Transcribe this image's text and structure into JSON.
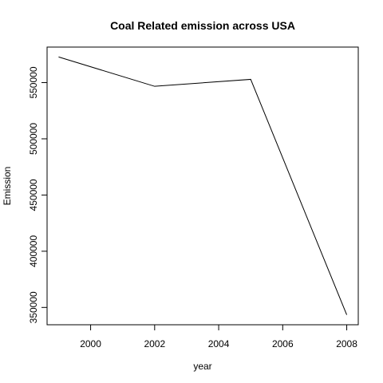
{
  "chart_data": {
    "type": "line",
    "title": "Coal Related emission across USA",
    "xlabel": "year",
    "ylabel": "Emission",
    "x": [
      1999,
      2002,
      2005,
      2008
    ],
    "series": [
      {
        "values": [
          572800,
          546700,
          552900,
          343400
        ]
      }
    ],
    "xlim": [
      1998.64,
      2008.36
    ],
    "ylim": [
      334600,
      581600
    ],
    "xticks": [
      2000,
      2002,
      2004,
      2006,
      2008
    ],
    "yticks": [
      350000,
      400000,
      450000,
      500000,
      550000
    ],
    "grid": false,
    "legend": "none"
  }
}
